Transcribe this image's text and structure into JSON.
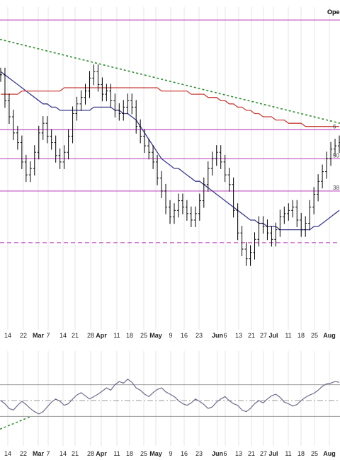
{
  "corner_label": "Ope",
  "chart_data": [
    {
      "type": "ohlc-bar",
      "panel": "price",
      "x_ticks": [
        {
          "label": "14",
          "bold": false
        },
        {
          "label": "22",
          "bold": false
        },
        {
          "label": "Mar",
          "bold": true
        },
        {
          "label": "7",
          "bold": false
        },
        {
          "label": "14",
          "bold": false
        },
        {
          "label": "21",
          "bold": false
        },
        {
          "label": "28",
          "bold": false
        },
        {
          "label": "Apr",
          "bold": true
        },
        {
          "label": "11",
          "bold": false
        },
        {
          "label": "18",
          "bold": false
        },
        {
          "label": "25",
          "bold": false
        },
        {
          "label": "May",
          "bold": true
        },
        {
          "label": "9",
          "bold": false
        },
        {
          "label": "16",
          "bold": false
        },
        {
          "label": "23",
          "bold": false
        },
        {
          "label": "Jun",
          "bold": true
        },
        {
          "label": "6",
          "bold": false
        },
        {
          "label": "13",
          "bold": false
        },
        {
          "label": "21",
          "bold": false
        },
        {
          "label": "27",
          "bold": false
        },
        {
          "label": "Jul",
          "bold": true
        },
        {
          "label": "11",
          "bold": false
        },
        {
          "label": "18",
          "bold": false
        },
        {
          "label": "25",
          "bold": false
        },
        {
          "label": "Aug",
          "bold": true
        }
      ],
      "ylim": [
        0,
        100
      ],
      "horizontal_levels": [
        {
          "value": 96,
          "style": "solid",
          "label": ""
        },
        {
          "value": 62,
          "style": "solid",
          "label": "6"
        },
        {
          "value": 53,
          "style": "solid",
          "label": "50"
        },
        {
          "value": 43,
          "style": "solid",
          "label": "38"
        },
        {
          "value": 27,
          "style": "dashed",
          "label": ""
        }
      ],
      "trendline": {
        "from_value": 90,
        "to_value": 64,
        "style": "dotted",
        "color": "#2e8b2e"
      },
      "moving_average_colors": {
        "short": "#3a3a8c",
        "long": "#c8403a"
      },
      "series": [
        {
          "color": "#000000",
          "values": [
            79,
            71,
            66,
            61,
            58,
            52,
            48,
            50,
            55,
            61,
            64,
            60,
            58,
            54,
            52,
            55,
            60,
            67,
            70,
            72,
            74,
            78,
            80,
            76,
            73,
            74,
            71,
            68,
            67,
            69,
            71,
            69,
            63,
            60,
            57,
            55,
            52,
            47,
            43,
            38,
            35,
            37,
            40,
            38,
            36,
            34,
            36,
            40,
            45,
            50,
            53,
            55,
            52,
            48,
            45,
            37,
            30,
            25,
            22,
            24,
            28,
            33,
            32,
            30,
            28,
            31,
            35,
            36,
            37,
            38,
            34,
            31,
            33,
            38,
            42,
            46,
            49,
            53,
            56,
            57,
            58
          ]
        },
        {
          "color": "#3a3a8c",
          "values": [
            80,
            79,
            78,
            77,
            76,
            75,
            74,
            73,
            72,
            71,
            70,
            70,
            69,
            69,
            68,
            68,
            68,
            68,
            68,
            68,
            68,
            68,
            69,
            69,
            69,
            69,
            69,
            68,
            68,
            67,
            67,
            66,
            65,
            63,
            61,
            59,
            57,
            55,
            53,
            52,
            51,
            50,
            50,
            49,
            48,
            47,
            46,
            46,
            45,
            44,
            43,
            42,
            41,
            40,
            39,
            38,
            37,
            36,
            35,
            34,
            34,
            33,
            33,
            32,
            32,
            32,
            31,
            31,
            31,
            31,
            31,
            31,
            31,
            31,
            32,
            32,
            33,
            34,
            35,
            36,
            37
          ]
        },
        {
          "color": "#c8403a",
          "values": [
            73,
            73,
            73,
            73,
            73,
            74,
            74,
            74,
            74,
            74,
            74,
            74,
            74,
            74,
            74,
            75,
            75,
            75,
            75,
            75,
            75,
            75,
            75,
            75,
            75,
            75,
            75,
            75,
            75,
            75,
            75,
            75,
            75,
            75,
            75,
            75,
            75,
            75,
            74,
            74,
            74,
            74,
            74,
            74,
            74,
            73,
            73,
            73,
            73,
            72,
            72,
            72,
            71,
            71,
            70,
            70,
            69,
            69,
            68,
            68,
            67,
            67,
            66,
            66,
            66,
            65,
            65,
            65,
            64,
            64,
            64,
            64,
            63,
            63,
            63,
            63,
            63,
            63,
            63,
            63,
            63
          ]
        }
      ]
    },
    {
      "type": "line",
      "panel": "indicator",
      "x_ticks": [
        {
          "label": "14",
          "bold": false
        },
        {
          "label": "22",
          "bold": false
        },
        {
          "label": "Mar",
          "bold": true
        },
        {
          "label": "7",
          "bold": false
        },
        {
          "label": "14",
          "bold": false
        },
        {
          "label": "21",
          "bold": false
        },
        {
          "label": "28",
          "bold": false
        },
        {
          "label": "Apr",
          "bold": true
        },
        {
          "label": "11",
          "bold": false
        },
        {
          "label": "18",
          "bold": false
        },
        {
          "label": "25",
          "bold": false
        },
        {
          "label": "May",
          "bold": true
        },
        {
          "label": "9",
          "bold": false
        },
        {
          "label": "16",
          "bold": false
        },
        {
          "label": "23",
          "bold": false
        },
        {
          "label": "Jun",
          "bold": true
        },
        {
          "label": "6",
          "bold": false
        },
        {
          "label": "13",
          "bold": false
        },
        {
          "label": "21",
          "bold": false
        },
        {
          "label": "27",
          "bold": false
        },
        {
          "label": "Jul",
          "bold": true
        },
        {
          "label": "11",
          "bold": false
        },
        {
          "label": "18",
          "bold": false
        },
        {
          "label": "25",
          "bold": false
        },
        {
          "label": "Aug",
          "bold": true
        }
      ],
      "ylim": [
        0,
        100
      ],
      "horizontal_levels": [
        {
          "value": 70,
          "style": "solid"
        },
        {
          "value": 50,
          "style": "dashdot"
        },
        {
          "value": 30,
          "style": "solid"
        }
      ],
      "trendline": {
        "from_value": 14,
        "to_value": 30,
        "style": "dotted",
        "color": "#2e8b2e"
      },
      "series": [
        {
          "color": "#6d6d8e",
          "values": [
            50,
            46,
            40,
            38,
            44,
            49,
            45,
            40,
            36,
            33,
            36,
            42,
            48,
            52,
            49,
            44,
            46,
            52,
            57,
            60,
            56,
            52,
            55,
            58,
            62,
            66,
            63,
            70,
            74,
            72,
            77,
            73,
            66,
            63,
            58,
            55,
            60,
            64,
            66,
            61,
            58,
            55,
            50,
            46,
            44,
            47,
            52,
            49,
            45,
            40,
            42,
            48,
            52,
            55,
            50,
            46,
            44,
            38,
            36,
            40,
            46,
            50,
            47,
            52,
            56,
            58,
            54,
            48,
            46,
            43,
            45,
            50,
            54,
            57,
            59,
            63,
            68,
            71,
            72,
            74,
            73
          ]
        }
      ]
    }
  ]
}
